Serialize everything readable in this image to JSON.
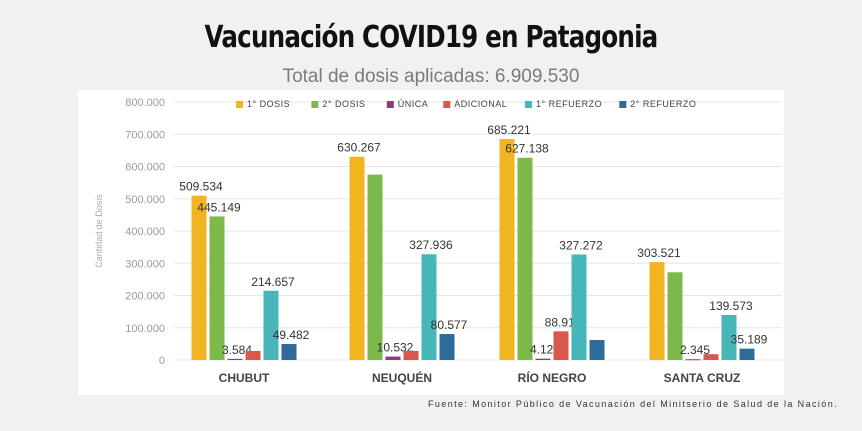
{
  "header": {
    "title": "Vacunación COVID19 en Patagonia",
    "subtitle": "Total de dosis aplicadas: 6.909.530"
  },
  "footer": {
    "source": "Fuente: Monitor Público de Vacunación del Minitserio de Salud de la Nación."
  },
  "chart_data": {
    "type": "bar",
    "title": "",
    "xlabel": "",
    "ylabel": "Cantidad de Dosis",
    "ylim": [
      0,
      800000
    ],
    "yticks": [
      0,
      100000,
      200000,
      300000,
      400000,
      500000,
      600000,
      700000,
      800000
    ],
    "ytick_labels": [
      "0",
      "100.000",
      "200.000",
      "300.000",
      "400.000",
      "500.000",
      "600.000",
      "700.000",
      "800.000"
    ],
    "grid": true,
    "legend_position": "top",
    "categories": [
      "CHUBUT",
      "NEUQUÉN",
      "RÍO NEGRO",
      "SANTA CRUZ"
    ],
    "series": [
      {
        "name": "1° DOSIS",
        "color": "#f1b51f",
        "values": [
          509534,
          630267,
          685221,
          303521
        ],
        "labels": [
          "509.534",
          "630.267",
          "685.221",
          "303.521"
        ]
      },
      {
        "name": "2° DOSIS",
        "color": "#7cb84a",
        "values": [
          445149,
          575000,
          627138,
          272000
        ],
        "labels": [
          "445.149",
          null,
          "627.138",
          null
        ]
      },
      {
        "name": "ÚNICA",
        "color": "#8e3b86",
        "values": [
          3584,
          10532,
          4122,
          2345
        ],
        "labels": [
          "3.584",
          "10.532",
          "4.122",
          "2.345"
        ]
      },
      {
        "name": "ADICIONAL",
        "color": "#d9584d",
        "values": [
          28000,
          28000,
          88917,
          18000
        ],
        "labels": [
          null,
          null,
          "88.917",
          null
        ]
      },
      {
        "name": "1° REFUERZO",
        "color": "#47b6b9",
        "values": [
          214657,
          327936,
          327272,
          139573
        ],
        "labels": [
          "214.657",
          "327.936",
          "327.272",
          "139.573"
        ]
      },
      {
        "name": "2° REFUERZO",
        "color": "#2d6c99",
        "values": [
          49482,
          80577,
          62000,
          35189
        ],
        "labels": [
          "49.482",
          "80.577",
          null,
          "35.189"
        ]
      }
    ]
  }
}
